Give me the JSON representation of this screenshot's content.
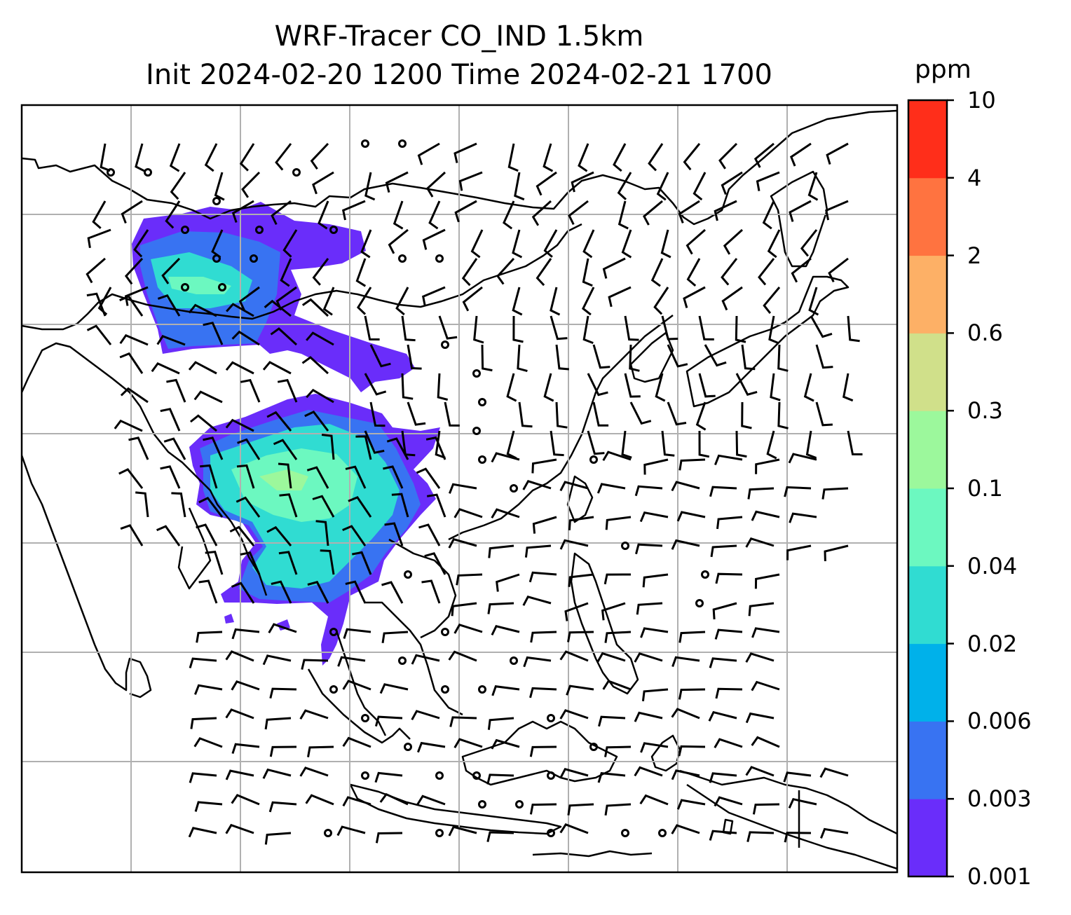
{
  "title": {
    "line1": "WRF-Tracer CO_IND 1.5km",
    "line2": "Init 2024-02-20 1200 Time 2024-02-21 1700"
  },
  "colorbar": {
    "unit": "ppm",
    "levels": [
      "0.001",
      "0.003",
      "0.006",
      "0.02",
      "0.04",
      "0.1",
      "0.3",
      "0.6",
      "2",
      "4",
      "10"
    ],
    "colors": [
      "#6a2dfa",
      "#3873f2",
      "#00b1ea",
      "#30dcd2",
      "#6cf8c0",
      "#9cf89c",
      "#d0e08a",
      "#fdb066",
      "#ff7340",
      "#ff2e1a"
    ]
  },
  "map": {
    "gridlines": true,
    "grid_color": "#b0b0b0",
    "coastline_color": "#000000",
    "wind_barbs": "black",
    "calm_marker": "circle"
  }
}
